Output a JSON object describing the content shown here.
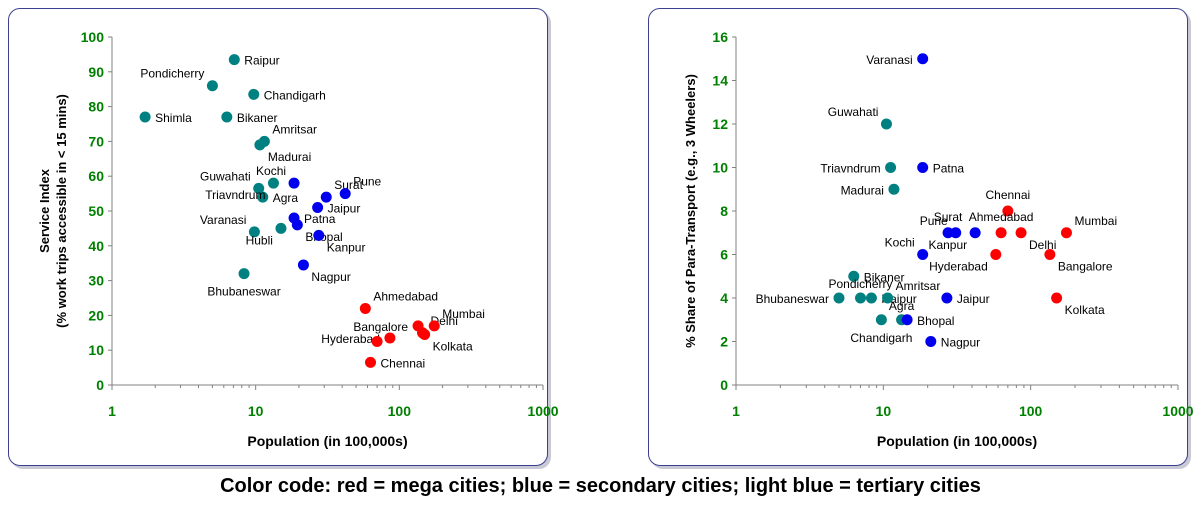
{
  "caption": "Color code: red = mega cities; blue = secondary cities; light blue = tertiary cities",
  "colors": {
    "mega": "#ff0000",
    "secondary": "#0000ee",
    "tertiary": "#008080",
    "tick": "#008000",
    "frame": "#3b3f8f"
  },
  "chart_data": [
    {
      "type": "scatter",
      "xlabel": "Population (in 100,000s)",
      "ylabel_lines": [
        "Service Index",
        "(% work trips accessible in < 15 mins)"
      ],
      "x_scale": "log",
      "xlim": [
        1,
        1000
      ],
      "ylim": [
        0,
        100
      ],
      "x_ticks": [
        1,
        10,
        100,
        1000
      ],
      "x_tick_labels": [
        "1",
        "10",
        "100",
        "1000"
      ],
      "y_ticks": [
        0,
        10,
        20,
        30,
        40,
        50,
        60,
        70,
        80,
        90,
        100
      ],
      "y_tick_labels": [
        "0",
        "10",
        "20",
        "30",
        "40",
        "50",
        "60",
        "70",
        "80",
        "90",
        "100"
      ],
      "points": [
        {
          "label": "Raipur",
          "x": 7.1,
          "y": 93.5,
          "group": "tertiary",
          "pos": "r"
        },
        {
          "label": "Pondicherry",
          "x": 5.0,
          "y": 86,
          "group": "tertiary",
          "pos": "tl"
        },
        {
          "label": "Chandigarh",
          "x": 9.7,
          "y": 83.5,
          "group": "tertiary",
          "pos": "r"
        },
        {
          "label": "Shimla",
          "x": 1.7,
          "y": 77,
          "group": "tertiary",
          "pos": "r"
        },
        {
          "label": "Bikaner",
          "x": 6.3,
          "y": 77,
          "group": "tertiary",
          "pos": "r"
        },
        {
          "label": "Amritsar",
          "x": 11.5,
          "y": 70,
          "group": "tertiary",
          "pos": "tr"
        },
        {
          "label": "Madurai",
          "x": 10.7,
          "y": 69,
          "group": "tertiary",
          "pos": "br"
        },
        {
          "label": "Guwahati",
          "x": 10.5,
          "y": 56.5,
          "group": "tertiary",
          "pos": "tl"
        },
        {
          "label": "Agra",
          "x": 11.2,
          "y": 54,
          "group": "tertiary",
          "pos": "r"
        },
        {
          "label": "Triavndrum",
          "x": 13.3,
          "y": 58,
          "group": "tertiary",
          "pos": "bl"
        },
        {
          "label": "Varanasi",
          "x": 9.8,
          "y": 44,
          "group": "tertiary",
          "pos": "tl"
        },
        {
          "label": "Hubli",
          "x": 15.0,
          "y": 45,
          "group": "tertiary",
          "pos": "bl"
        },
        {
          "label": "Bhubaneswar",
          "x": 8.3,
          "y": 32,
          "group": "tertiary",
          "pos": "b"
        },
        {
          "label": "Kochi",
          "x": 18.5,
          "y": 58,
          "group": "secondary",
          "pos": "tl"
        },
        {
          "label": "Surat",
          "x": 31.0,
          "y": 54,
          "group": "secondary",
          "pos": "tr"
        },
        {
          "label": "Pune",
          "x": 42.0,
          "y": 55,
          "group": "secondary",
          "pos": "tr"
        },
        {
          "label": "Jaipur",
          "x": 27.0,
          "y": 51,
          "group": "secondary",
          "pos": "r"
        },
        {
          "label": "Patna",
          "x": 18.5,
          "y": 48,
          "group": "secondary",
          "pos": "r"
        },
        {
          "label": "Bhopal",
          "x": 19.5,
          "y": 46,
          "group": "secondary",
          "pos": "br"
        },
        {
          "label": "Kanpur",
          "x": 27.5,
          "y": 43,
          "group": "secondary",
          "pos": "br"
        },
        {
          "label": "Nagpur",
          "x": 21.5,
          "y": 34.5,
          "group": "secondary",
          "pos": "br"
        },
        {
          "label": "Ahmedabad",
          "x": 58.0,
          "y": 22,
          "group": "mega",
          "pos": "tr"
        },
        {
          "label": "Bangalore",
          "x": 135.0,
          "y": 17,
          "group": "mega",
          "pos": "l"
        },
        {
          "label": "Delhi",
          "x": 145.0,
          "y": 15,
          "group": "mega",
          "pos": "tr"
        },
        {
          "label": "Mumbai",
          "x": 175.0,
          "y": 17,
          "group": "mega",
          "pos": "tr"
        },
        {
          "label": "Kolkata",
          "x": 150.0,
          "y": 14.5,
          "group": "mega",
          "pos": "br"
        },
        {
          "label": "Hyderabad",
          "x": 86.0,
          "y": 13.5,
          "group": "mega",
          "pos": "l"
        },
        {
          "label": "Chennai",
          "x": 70.0,
          "y": 12.5,
          "group": "mega",
          "pos": "none"
        },
        {
          "label": "Chennai",
          "x": 63.0,
          "y": 6.5,
          "group": "mega",
          "pos": "r"
        }
      ]
    },
    {
      "type": "scatter",
      "xlabel": "Population (in 100,000s)",
      "ylabel_lines": [
        "% Share of Para-Transport (e.g., 3 Wheelers)"
      ],
      "x_scale": "log",
      "xlim": [
        1,
        1000
      ],
      "ylim": [
        0,
        16
      ],
      "x_ticks": [
        1,
        10,
        100,
        1000
      ],
      "x_tick_labels": [
        "1",
        "10",
        "100",
        "1000"
      ],
      "y_ticks": [
        0,
        2,
        4,
        6,
        8,
        10,
        12,
        14,
        16
      ],
      "y_tick_labels": [
        "0",
        "2",
        "4",
        "6",
        "8",
        "10",
        "12",
        "14",
        "16"
      ],
      "points": [
        {
          "label": "Varanasi",
          "x": 18.5,
          "y": 15,
          "group": "secondary",
          "pos": "l"
        },
        {
          "label": "Guwahati",
          "x": 10.5,
          "y": 12,
          "group": "tertiary",
          "pos": "tl"
        },
        {
          "label": "Triavndrum",
          "x": 11.2,
          "y": 10,
          "group": "tertiary",
          "pos": "l"
        },
        {
          "label": "Patna",
          "x": 18.5,
          "y": 10,
          "group": "secondary",
          "pos": "r"
        },
        {
          "label": "Madurai",
          "x": 11.8,
          "y": 9,
          "group": "tertiary",
          "pos": "l"
        },
        {
          "label": "Chennai",
          "x": 70.0,
          "y": 8,
          "group": "mega",
          "pos": "tc"
        },
        {
          "label": "Surat",
          "x": 27.5,
          "y": 7,
          "group": "secondary",
          "pos": "tc"
        },
        {
          "label": "Pune",
          "x": 31.0,
          "y": 7,
          "group": "secondary",
          "pos": "tl"
        },
        {
          "label": "Ahmedabad",
          "x": 63.0,
          "y": 7,
          "group": "mega",
          "pos": "tc"
        },
        {
          "label": "Kanpur",
          "x": 42.0,
          "y": 7,
          "group": "secondary",
          "pos": "bl"
        },
        {
          "label": "Delhi",
          "x": 86.0,
          "y": 7,
          "group": "mega",
          "pos": "br"
        },
        {
          "label": "Mumbai",
          "x": 175.0,
          "y": 7,
          "group": "mega",
          "pos": "tr"
        },
        {
          "label": "Kochi",
          "x": 18.5,
          "y": 6,
          "group": "secondary",
          "pos": "tl"
        },
        {
          "label": "Hyderabad",
          "x": 58.0,
          "y": 6,
          "group": "mega",
          "pos": "bl"
        },
        {
          "label": "Bangalore",
          "x": 135.0,
          "y": 6,
          "group": "mega",
          "pos": "br"
        },
        {
          "label": "Bikaner",
          "x": 6.3,
          "y": 5,
          "group": "tertiary",
          "pos": "r"
        },
        {
          "label": "Bhubaneswar",
          "x": 5.0,
          "y": 4,
          "group": "tertiary",
          "pos": "l"
        },
        {
          "label": "Pondicherry",
          "x": 7.0,
          "y": 4,
          "group": "tertiary",
          "pos": "t"
        },
        {
          "label": "Raipur",
          "x": 8.3,
          "y": 4,
          "group": "tertiary",
          "pos": "r"
        },
        {
          "label": "Amritsar",
          "x": 10.7,
          "y": 4,
          "group": "tertiary",
          "pos": "tr"
        },
        {
          "label": "Jaipur",
          "x": 27.0,
          "y": 4,
          "group": "secondary",
          "pos": "r"
        },
        {
          "label": "Kolkata",
          "x": 150.0,
          "y": 4,
          "group": "mega",
          "pos": "br"
        },
        {
          "label": "Agra",
          "x": 13.3,
          "y": 3,
          "group": "tertiary",
          "pos": "t"
        },
        {
          "label": "Bhopal",
          "x": 14.5,
          "y": 3,
          "group": "secondary",
          "pos": "r"
        },
        {
          "label": "Chandigarh",
          "x": 9.7,
          "y": 3,
          "group": "tertiary",
          "pos": "b"
        },
        {
          "label": "Nagpur",
          "x": 21.0,
          "y": 2,
          "group": "secondary",
          "pos": "r"
        }
      ]
    }
  ]
}
